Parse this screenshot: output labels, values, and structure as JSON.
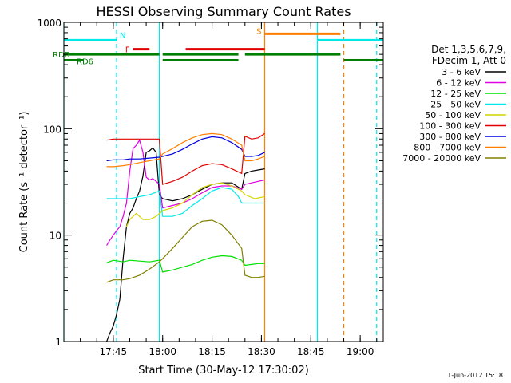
{
  "chart_data": {
    "type": "line",
    "title": "HESSI Observing Summary Count Rates",
    "xlabel": "Start Time (30-May-12 17:30:02)",
    "ylabel": "Count Rate (s⁻¹ detector⁻¹)",
    "yscale": "log",
    "ylim": [
      1,
      1000
    ],
    "xlim": [
      "17:30",
      "19:07"
    ],
    "x_ticks": [
      "17:45",
      "18:00",
      "18:15",
      "18:30",
      "18:45",
      "19:00"
    ],
    "y_ticks": [
      "1",
      "10",
      "100",
      "1000"
    ],
    "grid": false,
    "legend_placement": "right",
    "legend_header": [
      "Det 1,3,5,6,7,9,",
      "FDecim 1, Att 0"
    ],
    "timestamp": "1-Jun-2012 15:18",
    "series": [
      {
        "name": "3 - 6 keV",
        "color": "#000000",
        "x": [
          "17:43",
          "17:44",
          "17:45",
          "17:46",
          "17:47",
          "17:48",
          "17:49",
          "17:50",
          "17:51",
          "17:52",
          "17:53",
          "17:54",
          "17:55",
          "17:56",
          "17:57",
          "17:58",
          "17:59",
          "18:00",
          "18:03",
          "18:06",
          "18:09",
          "18:12",
          "18:15",
          "18:18",
          "18:21",
          "18:24",
          "18:25",
          "18:27",
          "18:29",
          "18:31"
        ],
        "y": [
          1,
          1.2,
          1.4,
          1.8,
          2.5,
          6,
          12,
          16,
          18,
          22,
          26,
          36,
          60,
          62,
          66,
          60,
          24,
          22,
          21,
          22,
          24,
          27,
          30,
          31,
          31,
          27,
          38,
          40,
          41,
          42
        ]
      },
      {
        "name": "6 - 12 keV",
        "color": "#e000e0",
        "x": [
          "17:43",
          "17:44",
          "17:45",
          "17:46",
          "17:47",
          "17:48",
          "17:49",
          "17:50",
          "17:51",
          "17:52",
          "17:53",
          "17:54",
          "17:55",
          "17:56",
          "17:57",
          "17:58",
          "17:59",
          "18:00",
          "18:03",
          "18:06",
          "18:09",
          "18:12",
          "18:15",
          "18:18",
          "18:21",
          "18:24",
          "18:25",
          "18:27",
          "18:29",
          "18:31"
        ],
        "y": [
          8,
          9,
          10,
          11,
          12,
          15,
          20,
          40,
          65,
          70,
          78,
          60,
          35,
          33,
          34,
          32,
          30,
          18,
          19,
          20,
          22,
          25,
          28,
          29,
          29,
          27,
          30,
          31,
          32,
          33
        ]
      },
      {
        "name": "12 - 25 keV",
        "color": "#00e000",
        "x": [
          "17:43",
          "17:45",
          "17:48",
          "17:50",
          "17:53",
          "17:56",
          "17:59",
          "18:00",
          "18:03",
          "18:06",
          "18:09",
          "18:12",
          "18:15",
          "18:18",
          "18:21",
          "18:24",
          "18:25",
          "18:27",
          "18:29",
          "18:31"
        ],
        "y": [
          5.5,
          5.8,
          5.6,
          5.8,
          5.7,
          5.6,
          5.8,
          4.5,
          4.7,
          5.0,
          5.3,
          5.8,
          6.2,
          6.4,
          6.3,
          5.8,
          5.2,
          5.3,
          5.4,
          5.4
        ]
      },
      {
        "name": "25 - 50 keV",
        "color": "#00e8e8",
        "x": [
          "17:43",
          "17:45",
          "17:48",
          "17:50",
          "17:53",
          "17:56",
          "17:59",
          "18:00",
          "18:03",
          "18:06",
          "18:09",
          "18:12",
          "18:15",
          "18:18",
          "18:21",
          "18:23",
          "18:24",
          "18:27",
          "18:30",
          "18:31"
        ],
        "y": [
          22,
          22,
          22,
          22,
          23,
          24,
          26,
          15,
          15,
          16,
          19,
          22,
          26,
          28,
          27,
          23,
          20,
          20,
          20,
          20
        ]
      },
      {
        "name": "50 - 100 keV",
        "color": "#d4d400",
        "x": [
          "17:49",
          "17:50",
          "17:52",
          "17:54",
          "17:56",
          "17:58",
          "18:00",
          "18:03",
          "18:06",
          "18:09",
          "18:12",
          "18:15",
          "18:18",
          "18:21",
          "18:24",
          "18:25",
          "18:28",
          "18:31"
        ],
        "y": [
          12,
          14,
          16,
          14,
          14,
          15,
          17,
          18,
          20,
          24,
          28,
          30,
          31,
          29,
          26,
          24,
          22,
          23
        ]
      },
      {
        "name": "100 - 300 keV",
        "color": "#e00000",
        "x": [
          "17:43",
          "17:45",
          "17:48",
          "17:50",
          "17:53",
          "17:56",
          "17:59",
          "18:00",
          "18:03",
          "18:06",
          "18:09",
          "18:12",
          "18:15",
          "18:18",
          "18:21",
          "18:24",
          "18:25",
          "18:27",
          "18:29",
          "18:31"
        ],
        "y": [
          78,
          80,
          80,
          80,
          80,
          80,
          80,
          30,
          32,
          35,
          40,
          45,
          47,
          46,
          42,
          38,
          85,
          80,
          82,
          90
        ]
      },
      {
        "name": "300 - 800 keV",
        "color": "#0000e0",
        "x": [
          "17:43",
          "17:45",
          "17:48",
          "17:50",
          "17:53",
          "17:56",
          "17:59",
          "18:00",
          "18:03",
          "18:06",
          "18:09",
          "18:12",
          "18:15",
          "18:18",
          "18:21",
          "18:24",
          "18:25",
          "18:27",
          "18:29",
          "18:31"
        ],
        "y": [
          50,
          51,
          51,
          52,
          52,
          53,
          54,
          55,
          58,
          64,
          72,
          80,
          84,
          82,
          74,
          64,
          55,
          55,
          56,
          60
        ]
      },
      {
        "name": "800 - 7000 keV",
        "color": "#ff8000",
        "x": [
          "17:43",
          "17:45",
          "17:48",
          "17:50",
          "17:53",
          "17:56",
          "17:59",
          "18:00",
          "18:03",
          "18:06",
          "18:09",
          "18:12",
          "18:15",
          "18:18",
          "18:21",
          "18:24",
          "18:25",
          "18:27",
          "18:29",
          "18:31"
        ],
        "y": [
          44,
          44,
          45,
          46,
          48,
          50,
          52,
          58,
          65,
          74,
          82,
          88,
          90,
          88,
          80,
          70,
          50,
          50,
          52,
          55
        ]
      },
      {
        "name": "7000 - 20000 keV",
        "color": "#808000",
        "x": [
          "17:43",
          "17:45",
          "17:48",
          "17:50",
          "17:53",
          "17:56",
          "17:59",
          "18:00",
          "18:03",
          "18:06",
          "18:09",
          "18:12",
          "18:15",
          "18:18",
          "18:21",
          "18:24",
          "18:25",
          "18:27",
          "18:29",
          "18:31"
        ],
        "y": [
          3.6,
          3.8,
          3.8,
          3.9,
          4.2,
          4.8,
          5.6,
          6.0,
          7.5,
          9.5,
          12.0,
          13.5,
          13.8,
          12.5,
          10.0,
          7.5,
          4.2,
          4.0,
          4.0,
          4.1
        ]
      }
    ],
    "flag_bars": [
      {
        "label": "N",
        "color": "#00e8e8",
        "y": 680,
        "segments": [
          [
            "17:30",
            "17:46"
          ],
          [
            "18:47",
            "19:07"
          ]
        ]
      },
      {
        "label": "F",
        "color": "#e00000",
        "y": 560,
        "segments": [
          [
            "17:51",
            "17:56"
          ],
          [
            "18:07",
            "18:31"
          ]
        ]
      },
      {
        "label": "S",
        "color": "#ff8000",
        "y": 780,
        "segments": [
          [
            "18:31",
            "18:54"
          ]
        ]
      },
      {
        "label": "RDB",
        "color": "#008000",
        "y": 500,
        "segments": [
          [
            "17:30",
            "17:59"
          ],
          [
            "18:00",
            "18:23"
          ],
          [
            "18:25",
            "18:54"
          ]
        ]
      },
      {
        "label": "RD6",
        "color": "#008000",
        "y": 440,
        "segments": [
          [
            "17:30",
            "17:36"
          ],
          [
            "18:00",
            "18:23"
          ],
          [
            "18:55",
            "19:07"
          ]
        ]
      }
    ],
    "vertical_markers": [
      {
        "x": "17:30",
        "color": "#00e8e8",
        "style": "solid"
      },
      {
        "x": "17:46",
        "color": "#00e8e8",
        "style": "dashed"
      },
      {
        "x": "17:59",
        "color": "#00e8e8",
        "style": "solid"
      },
      {
        "x": "18:31",
        "color": "#ff8000",
        "style": "solid"
      },
      {
        "x": "18:47",
        "color": "#00e8e8",
        "style": "solid"
      },
      {
        "x": "18:55",
        "color": "#ff8000",
        "style": "dashed"
      },
      {
        "x": "19:05",
        "color": "#00e8e8",
        "style": "dashed"
      }
    ]
  }
}
